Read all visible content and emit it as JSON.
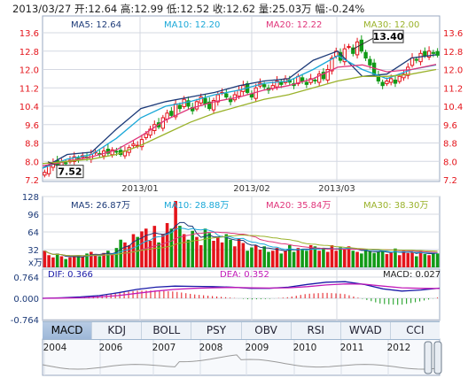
{
  "header": {
    "date": "2013/03/27",
    "open": "开:12.64",
    "high": "高:12.99",
    "low": "低:12.52",
    "close": "收:12.62",
    "volume": "量:25.03万",
    "change": "幅:-0.24%"
  },
  "colors": {
    "up": "#e4141b",
    "down": "#119a17",
    "ma5": "#1c3a78",
    "ma10": "#1aa8d8",
    "ma20": "#e0347a",
    "ma30": "#9ab22a",
    "grid": "#d4d8e2",
    "frame": "#9aa8c0",
    "axis_left": "#e4141b",
    "axis_neutral": "#1c3a78"
  },
  "price_chart": {
    "legend": [
      {
        "text": "MA5: 12.64",
        "color_key": "ma5"
      },
      {
        "text": "MA10: 12.20",
        "color_key": "ma10"
      },
      {
        "text": "MA20: 12.22",
        "color_key": "ma20"
      },
      {
        "text": "MA30: 12.00",
        "color_key": "ma30"
      }
    ],
    "high_label": "13.40",
    "low_label": "7.52",
    "y_ticks": [
      "13.6",
      "12.8",
      "12.0",
      "11.2",
      "10.4",
      "9.6",
      "8.8",
      "8.0",
      "7.2"
    ],
    "x_ticks": [
      "2013/01",
      "2013/02",
      "2013/03"
    ]
  },
  "volume_chart": {
    "legend": [
      {
        "text": "MA5: 26.87万",
        "color_key": "ma5"
      },
      {
        "text": "MA10: 28.88万",
        "color_key": "ma10"
      },
      {
        "text": "MA20: 35.84万",
        "color_key": "ma20"
      },
      {
        "text": "MA30: 38.30万",
        "color_key": "ma30"
      }
    ],
    "y_ticks": [
      "128",
      "96",
      "64",
      "32"
    ],
    "unit": "x万"
  },
  "macd_chart": {
    "dif_label": "DIF: 0.366",
    "dea_label": "DEA: 0.352",
    "macd_label": "MACD: 0.027",
    "y_ticks": [
      "0.764",
      "0.000",
      "-0.764"
    ]
  },
  "indicator_tabs": [
    "MACD",
    "KDJ",
    "BOLL",
    "PSY",
    "OBV",
    "RSI",
    "WVAD",
    "CCI"
  ],
  "active_tab": "MACD",
  "navigator": {
    "years": [
      "2004",
      "2006",
      "2007",
      "2008",
      "2009",
      "2010",
      "2011",
      "2012"
    ]
  },
  "chart_data": [
    {
      "type": "candlestick",
      "title": "",
      "x_axis": [
        "2013/01",
        "2013/02",
        "2013/03"
      ],
      "ylim": [
        7.2,
        13.6
      ],
      "grid": true,
      "highest": 13.4,
      "lowest": 7.52,
      "last_bar": {
        "date": "2013/03/27",
        "open": 12.64,
        "high": 12.99,
        "low": 12.52,
        "close": 12.62
      },
      "close": [
        7.52,
        7.8,
        7.95,
        7.85,
        8.0,
        7.9,
        8.05,
        8.2,
        8.1,
        8.25,
        8.15,
        8.3,
        8.4,
        8.3,
        8.45,
        8.35,
        8.5,
        8.4,
        8.3,
        8.45,
        8.6,
        8.75,
        8.7,
        8.95,
        9.2,
        9.4,
        9.6,
        9.5,
        9.9,
        10.1,
        10.0,
        10.5,
        10.3,
        10.7,
        10.4,
        10.2,
        10.6,
        10.8,
        10.5,
        10.3,
        10.65,
        10.9,
        11.0,
        10.8,
        10.6,
        10.9,
        11.1,
        11.3,
        11.0,
        10.8,
        11.2,
        11.4,
        11.25,
        11.1,
        11.3,
        11.5,
        11.35,
        11.6,
        11.45,
        11.3,
        11.7,
        11.5,
        11.35,
        11.6,
        11.5,
        11.8,
        11.6,
        12.0,
        12.5,
        12.8,
        12.4,
        12.9,
        13.0,
        12.7,
        13.2,
        12.8,
        12.5,
        12.2,
        11.8,
        11.5,
        11.3,
        11.5,
        11.6,
        11.4,
        11.7,
        11.8,
        12.1,
        12.5,
        12.4,
        12.7,
        12.6,
        12.8,
        12.7,
        12.62
      ],
      "series": [
        {
          "name": "MA5",
          "values": [
            7.7,
            8.3,
            8.4,
            9.4,
            10.3,
            10.6,
            10.8,
            11.0,
            11.3,
            11.5,
            11.6,
            12.4,
            12.8,
            11.7,
            11.8,
            12.5,
            12.64
          ]
        },
        {
          "name": "MA10",
          "values": [
            7.7,
            8.1,
            8.3,
            9.0,
            9.9,
            10.4,
            10.6,
            10.9,
            11.1,
            11.4,
            11.5,
            12.0,
            12.6,
            12.0,
            11.6,
            12.0,
            12.2
          ]
        },
        {
          "name": "MA20",
          "values": [
            7.8,
            8.0,
            8.2,
            8.5,
            9.1,
            9.8,
            10.3,
            10.6,
            10.8,
            11.1,
            11.3,
            11.6,
            12.1,
            12.2,
            11.9,
            12.0,
            12.22
          ]
        },
        {
          "name": "MA30",
          "values": [
            7.9,
            8.0,
            8.1,
            8.3,
            8.7,
            9.2,
            9.7,
            10.1,
            10.4,
            10.7,
            10.9,
            11.2,
            11.5,
            11.7,
            11.7,
            11.8,
            12.0
          ]
        }
      ]
    },
    {
      "type": "bar",
      "title": "",
      "ylim": [
        0,
        128
      ],
      "values": [
        30,
        22,
        18,
        25,
        20,
        15,
        18,
        20,
        22,
        19,
        25,
        28,
        24,
        20,
        26,
        30,
        24,
        35,
        50,
        45,
        40,
        60,
        55,
        65,
        70,
        48,
        75,
        45,
        60,
        80,
        70,
        120,
        75,
        60,
        50,
        66,
        55,
        40,
        70,
        62,
        48,
        55,
        45,
        60,
        50,
        38,
        52,
        44,
        30,
        36,
        40,
        32,
        38,
        28,
        30,
        35,
        25,
        30,
        40,
        28,
        35,
        32,
        30,
        40,
        38,
        30,
        35,
        28,
        40,
        30,
        36,
        32,
        38,
        30,
        28,
        25,
        32,
        30,
        26,
        28,
        30,
        24,
        26,
        34,
        22,
        30,
        26,
        28,
        20,
        30,
        24,
        22,
        28,
        25.03
      ],
      "series": [
        {
          "name": "MA5",
          "values": [
            26.87
          ]
        },
        {
          "name": "MA10",
          "values": [
            28.88
          ]
        },
        {
          "name": "MA20",
          "values": [
            35.84
          ]
        },
        {
          "name": "MA30",
          "values": [
            38.3
          ]
        }
      ]
    },
    {
      "type": "line",
      "title": "",
      "ylim": [
        -0.764,
        0.764
      ],
      "series": [
        {
          "name": "DIF",
          "values": [
            0.0,
            0.02,
            0.05,
            0.1,
            0.2,
            0.32,
            0.4,
            0.44,
            0.43,
            0.42,
            0.4,
            0.36,
            0.36,
            0.4,
            0.5,
            0.58,
            0.6,
            0.5,
            0.34,
            0.26,
            0.3,
            0.366
          ]
        },
        {
          "name": "DEA",
          "values": [
            0.0,
            0.01,
            0.02,
            0.05,
            0.1,
            0.18,
            0.26,
            0.32,
            0.36,
            0.38,
            0.39,
            0.38,
            0.37,
            0.38,
            0.42,
            0.48,
            0.52,
            0.51,
            0.44,
            0.38,
            0.36,
            0.352
          ]
        },
        {
          "name": "MACD",
          "values": [
            0.0,
            0.02,
            0.06,
            0.1,
            0.2,
            0.28,
            0.28,
            0.24,
            0.14,
            0.08,
            0.02,
            -0.04,
            -0.02,
            0.04,
            0.16,
            0.2,
            0.16,
            -0.02,
            -0.2,
            -0.24,
            -0.12,
            0.027
          ]
        }
      ]
    }
  ]
}
